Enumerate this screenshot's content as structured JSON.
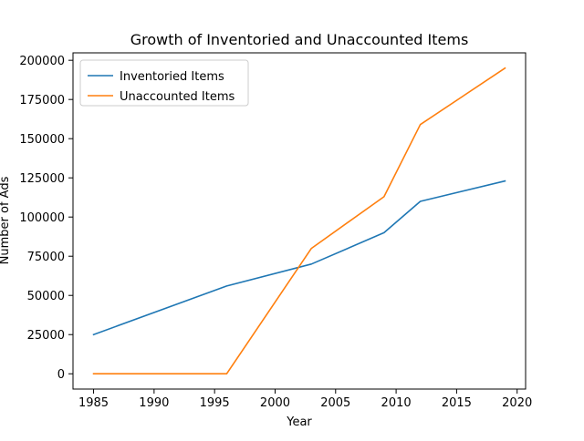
{
  "chart_data": {
    "type": "line",
    "title": "Growth of Inventoried and Unaccounted Items",
    "xlabel": "Year",
    "ylabel": "Number of Ads",
    "xlim": [
      1983.3,
      2020.7
    ],
    "ylim": [
      -9750,
      204750
    ],
    "xticks": [
      1985,
      1990,
      1995,
      2000,
      2005,
      2010,
      2015,
      2020
    ],
    "xtick_labels": [
      "1985",
      "1990",
      "1995",
      "2000",
      "2005",
      "2010",
      "2015",
      "2020"
    ],
    "yticks": [
      0,
      25000,
      50000,
      75000,
      100000,
      125000,
      150000,
      175000,
      200000
    ],
    "ytick_labels": [
      "0",
      "25000",
      "50000",
      "75000",
      "100000",
      "125000",
      "150000",
      "175000",
      "200000"
    ],
    "grid": false,
    "legend_position": "top-left",
    "series": [
      {
        "name": "Inventoried Items",
        "color": "#1f77b4",
        "x": [
          1985,
          1996,
          2003,
          2009,
          2012,
          2019
        ],
        "values": [
          25000,
          56000,
          70000,
          90000,
          110000,
          123000
        ]
      },
      {
        "name": "Unaccounted Items",
        "color": "#ff7f0e",
        "x": [
          1985,
          1996,
          2003,
          2009,
          2012,
          2019
        ],
        "values": [
          0,
          0,
          80000,
          113000,
          159000,
          195000
        ]
      }
    ]
  }
}
